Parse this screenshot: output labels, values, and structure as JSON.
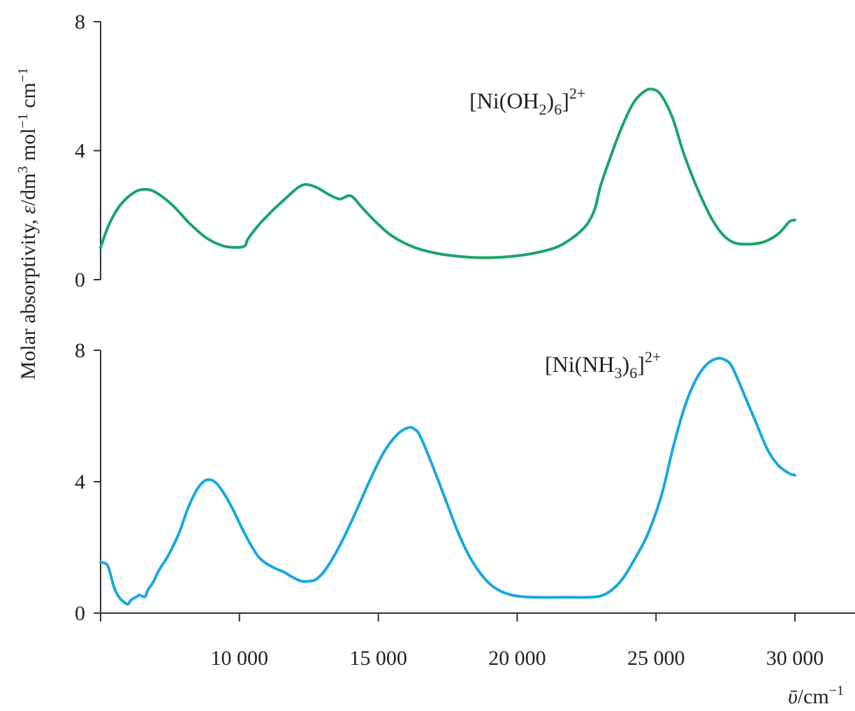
{
  "chart_data": {
    "type": "line",
    "y_axis_label": {
      "main": "Molar absorptivity, ",
      "symbol": "ε",
      "rest": "/dm",
      "sup1": "3",
      "mid": " mol",
      "sup2": "−1",
      "mid2": " cm",
      "sup3": "−1"
    },
    "x_axis_label": {
      "symbol": "ῡ",
      "rest": "/cm",
      "sup": "−1"
    },
    "xlim": [
      5000,
      32000
    ],
    "x_ticks": [
      10000,
      15000,
      20000,
      25000,
      30000
    ],
    "x_tick_labels": [
      "10 000",
      "15 000",
      "20 000",
      "25 000",
      "30 000"
    ],
    "panels": [
      {
        "name": "[Ni(OH2)6]2+",
        "label": {
          "open": "[Ni(OH",
          "sub1": "2",
          "close": ")",
          "sub2": "6",
          "bracket": "]",
          "sup": "2+"
        },
        "color": "#1aa66a",
        "ylim": [
          0,
          8
        ],
        "y_ticks": [
          0,
          4,
          8
        ],
        "x": [
          5000,
          5300,
          5700,
          6200,
          6600,
          7000,
          7600,
          8200,
          8800,
          9400,
          9900,
          10200,
          10300,
          10700,
          11200,
          11700,
          12100,
          12400,
          12800,
          13200,
          13600,
          13900,
          14100,
          14400,
          14900,
          15500,
          16300,
          17200,
          18200,
          19000,
          19800,
          20600,
          21400,
          22000,
          22500,
          22800,
          23000,
          23400,
          23800,
          24200,
          24600,
          24900,
          25200,
          25600,
          26000,
          26500,
          27000,
          27400,
          27800,
          28300,
          28800,
          29200,
          29500,
          29800,
          30000
        ],
        "y": [
          1.0,
          1.7,
          2.3,
          2.7,
          2.8,
          2.7,
          2.3,
          1.75,
          1.3,
          1.05,
          1.0,
          1.05,
          1.25,
          1.7,
          2.15,
          2.55,
          2.85,
          2.95,
          2.85,
          2.65,
          2.5,
          2.6,
          2.55,
          2.25,
          1.8,
          1.35,
          1.0,
          0.8,
          0.7,
          0.68,
          0.72,
          0.82,
          1.0,
          1.3,
          1.7,
          2.2,
          2.9,
          3.9,
          4.8,
          5.5,
          5.85,
          5.9,
          5.7,
          5.0,
          3.9,
          2.8,
          1.9,
          1.4,
          1.15,
          1.1,
          1.15,
          1.3,
          1.5,
          1.8,
          1.85
        ]
      },
      {
        "name": "[Ni(NH3)6]2+",
        "label": {
          "open": "[Ni(NH",
          "sub1": "3",
          "close": ")",
          "sub2": "6",
          "bracket": "]",
          "sup": "2+"
        },
        "color": "#1aa8e0",
        "ylim": [
          0,
          8
        ],
        "y_ticks": [
          0,
          4,
          8
        ],
        "x": [
          5000,
          5200,
          5300,
          5500,
          5700,
          5900,
          6000,
          6100,
          6300,
          6400,
          6600,
          6700,
          6900,
          7100,
          7400,
          7700,
          7900,
          8000,
          8200,
          8500,
          8800,
          9100,
          9400,
          9800,
          10200,
          10700,
          11200,
          11600,
          11900,
          12200,
          12500,
          12800,
          13200,
          13700,
          14200,
          14700,
          15200,
          15700,
          16100,
          16300,
          16500,
          16900,
          17400,
          17900,
          18400,
          19000,
          19600,
          20200,
          20800,
          21400,
          22000,
          22500,
          23000,
          23400,
          23800,
          24200,
          24700,
          25200,
          25600,
          26000,
          26400,
          26800,
          27200,
          27500,
          27700,
          27900,
          28200,
          28600,
          29000,
          29400,
          29800,
          30000
        ],
        "y": [
          1.55,
          1.5,
          1.35,
          0.75,
          0.45,
          0.3,
          0.28,
          0.4,
          0.5,
          0.55,
          0.5,
          0.7,
          0.95,
          1.3,
          1.7,
          2.2,
          2.6,
          2.85,
          3.3,
          3.8,
          4.05,
          4.0,
          3.7,
          3.1,
          2.4,
          1.7,
          1.4,
          1.25,
          1.1,
          0.98,
          0.97,
          1.05,
          1.45,
          2.2,
          3.1,
          4.05,
          4.9,
          5.45,
          5.65,
          5.6,
          5.4,
          4.6,
          3.5,
          2.4,
          1.55,
          0.9,
          0.6,
          0.5,
          0.48,
          0.48,
          0.48,
          0.48,
          0.52,
          0.7,
          1.05,
          1.6,
          2.4,
          3.6,
          5.0,
          6.2,
          7.05,
          7.55,
          7.75,
          7.7,
          7.55,
          7.2,
          6.6,
          5.8,
          5.0,
          4.5,
          4.25,
          4.2
        ]
      }
    ]
  }
}
